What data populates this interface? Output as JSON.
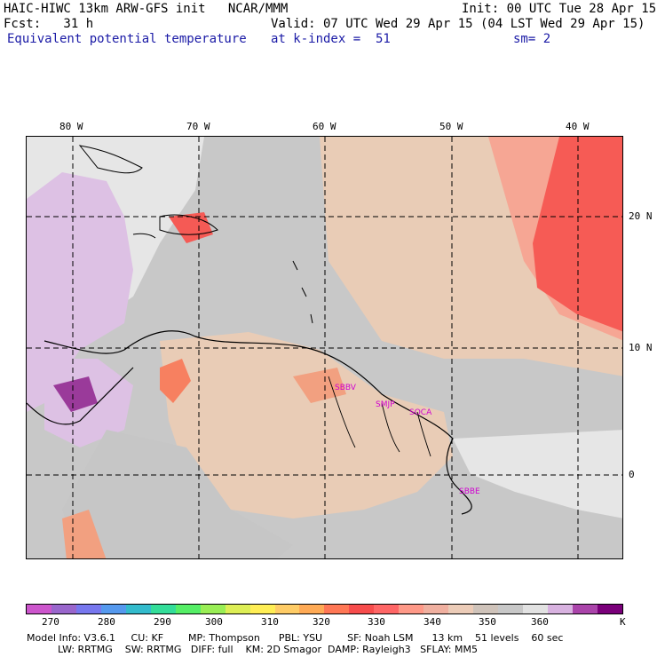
{
  "header": {
    "title_left": "HAIC-HIWC 13km ARW-GFS init   NCAR/MMM",
    "init": "Init: 00 UTC Tue 28 Apr 15",
    "fcst_label": "Fcst:   31 h",
    "valid": "Valid: 07 UTC Wed 29 Apr 15 (04 LST Wed 29 Apr 15)",
    "field": "Equivalent potential temperature",
    "level": "at k-index =  51",
    "smoothing": "sm= 2"
  },
  "map": {
    "lon_labels": [
      "80 W",
      "70 W",
      "60 W",
      "50 W",
      "40 W"
    ],
    "lat_labels": [
      "20 N",
      "10 N",
      "0"
    ],
    "stations": [
      "SBBV",
      "SMJP",
      "SOCA",
      "SBBE"
    ]
  },
  "colorbar": {
    "colors": [
      "#cc55cc",
      "#9966cc",
      "#7777ee",
      "#5599ee",
      "#33bbcc",
      "#33dd99",
      "#55ee66",
      "#99ee55",
      "#ddee55",
      "#ffee55",
      "#ffcc66",
      "#ffaa55",
      "#ff7755",
      "#f74c4c",
      "#ff6666",
      "#ff9988",
      "#f0b0a0",
      "#ecccb8",
      "#cfc3ba",
      "#c8c8c8",
      "#e2e2e2",
      "#d8b2e0",
      "#aa44aa",
      "#7a007a"
    ],
    "ticks": [
      "270",
      "280",
      "290",
      "300",
      "310",
      "320",
      "330",
      "340",
      "350",
      "360"
    ],
    "unit": "K"
  },
  "model_info": {
    "line1": "Model Info: V3.6.1     CU: KF        MP: Thompson      PBL: YSU        SF: Noah LSM      13 km    51 levels    60 sec",
    "line2": "          LW: RRTMG    SW: RRTMG   DIFF: full    KM: 2D Smagor  DAMP: Rayleigh3   SFLAY: MM5"
  }
}
